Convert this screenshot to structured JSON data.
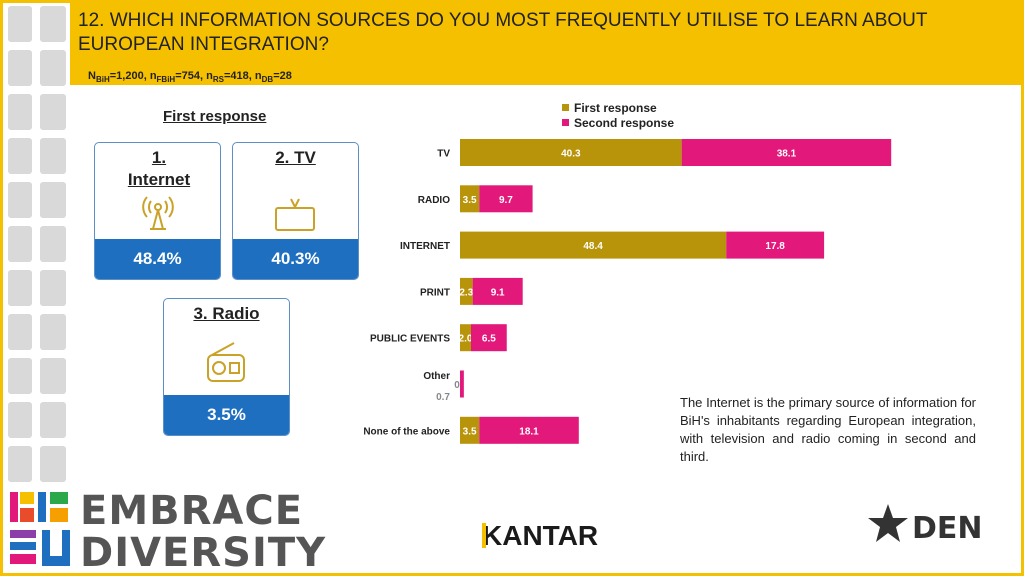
{
  "header": {
    "title": "12. WHICH INFORMATION SOURCES DO YOU MOST FREQUENTLY UTILISE TO LEARN ABOUT EUROPEAN INTEGRATION?",
    "sample": {
      "n_bih": "1,200",
      "n_fbih": "754",
      "n_rs": "418",
      "n_db": "28"
    }
  },
  "first_response": {
    "heading": "First response",
    "cards": [
      {
        "label": "1. Internet",
        "value": "48.4%",
        "icon": "antenna-icon"
      },
      {
        "label": "2. TV",
        "value": "40.3%",
        "icon": "tv-icon"
      },
      {
        "label": "3. Radio",
        "value": "3.5%",
        "icon": "radio-icon"
      }
    ]
  },
  "chart_data": {
    "type": "bar",
    "orientation": "horizontal",
    "stacked": true,
    "categories": [
      "TV",
      "RADIO",
      "INTERNET",
      "PRINT",
      "PUBLIC EVENTS",
      "Other",
      "None of the above"
    ],
    "series": [
      {
        "name": "First response",
        "color": "#b8940a",
        "values": [
          40.3,
          3.5,
          48.4,
          2.3,
          2.0,
          0.0,
          3.5
        ]
      },
      {
        "name": "Second response",
        "color": "#e2197a",
        "values": [
          38.1,
          9.7,
          17.8,
          9.1,
          6.5,
          0.7,
          18.1
        ]
      }
    ],
    "labels": [
      [
        "40.3",
        "3.5",
        "48.4",
        "2.3",
        "2.0",
        "0",
        "3.5"
      ],
      [
        "38.1",
        "9.7",
        "17.8",
        "9.1",
        "6.5",
        "0.7",
        "18.1"
      ]
    ],
    "legend_position": "top-right"
  },
  "note": "The Internet is the primary source of information for BiH's inhabitants regarding European integration, with television and radio coming in second and third.",
  "branding": {
    "embrace_line1": "EMBRACE",
    "embrace_line2": "DIVERSITY",
    "kantar": "KANTAR",
    "den": "DEN"
  }
}
